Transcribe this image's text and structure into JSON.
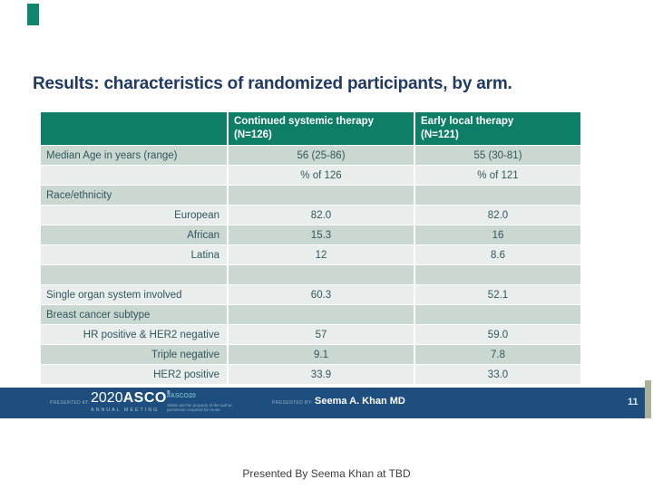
{
  "title": "Results: characteristics of randomized participants, by arm.",
  "table": {
    "columns": [
      {
        "title": "",
        "n": ""
      },
      {
        "title": "Continued systemic therapy",
        "n": "(N=126)"
      },
      {
        "title": "Early local therapy",
        "n": "(N=121)"
      }
    ],
    "rows": [
      {
        "label": "Median Age in years (range)",
        "align": "left",
        "v1": "56 (25-86)",
        "v2": "55 (30-81)"
      },
      {
        "label": "",
        "align": "left",
        "v1": "% of 126",
        "v2": "% of 121"
      },
      {
        "label": "Race/ethnicity",
        "align": "left",
        "v1": "",
        "v2": ""
      },
      {
        "label": "European",
        "align": "right",
        "v1": "82.0",
        "v2": "82.0"
      },
      {
        "label": "African",
        "align": "right",
        "v1": "15.3",
        "v2": "16"
      },
      {
        "label": "Latina",
        "align": "right",
        "v1": "12",
        "v2": "8.6"
      },
      {
        "label": "",
        "align": "left",
        "v1": "",
        "v2": ""
      },
      {
        "label": "Single organ system involved",
        "align": "left",
        "v1": "60.3",
        "v2": "52.1"
      },
      {
        "label": "Breast cancer subtype",
        "align": "left",
        "v1": "",
        "v2": ""
      },
      {
        "label": "HR positive & HER2 negative",
        "align": "right",
        "v1": "57",
        "v2": "59.0"
      },
      {
        "label": "Triple negative",
        "align": "right",
        "v1": "9.1",
        "v2": "7.8"
      },
      {
        "label": "HER2 positive",
        "align": "right",
        "v1": "33.9",
        "v2": "33.0"
      }
    ]
  },
  "footer": {
    "presented_at_label": "PRESENTED AT:",
    "logo_year": "2020",
    "logo_name": "ASCO",
    "logo_reg": "®",
    "logo_sub": "ANNUAL MEETING",
    "hashtag": "#ASCO20",
    "tagline_line1": "Slides are the property of the author,",
    "tagline_line2": "permission required for reuse.",
    "presented_by_label": "PRESENTED BY:",
    "presenter": "Seema A. Khan MD",
    "slide_number": "11"
  },
  "caption": "Presented By Seema Khan at TBD",
  "colors": {
    "title_navy": "#203a63",
    "header_green": "#0e7f66",
    "row_medium": "#cbd7d1",
    "row_light": "#e9eeec",
    "table_text": "#30565e",
    "footer_navy": "#1e4e7d",
    "accent_teal": "#12866d",
    "hashtag_blue": "#6db0c4",
    "edge_strip": "#a9b196"
  }
}
